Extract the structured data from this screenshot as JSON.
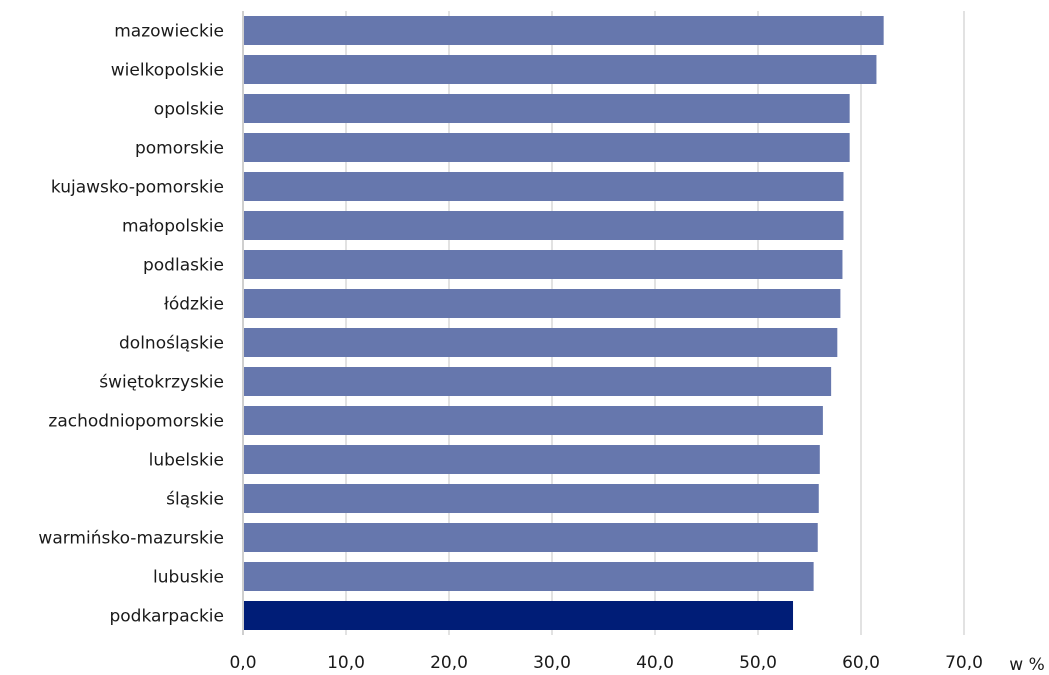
{
  "chart_data": {
    "type": "bar",
    "orientation": "horizontal",
    "categories": [
      "mazowieckie",
      "wielkopolskie",
      "opolskie",
      "pomorskie",
      "kujawsko-pomorskie",
      "małopolskie",
      "podlaskie",
      "łódzkie",
      "dolnośląskie",
      "świętokrzyskie",
      "zachodniopomorskie",
      "lubelskie",
      "śląskie",
      "warmińsko-mazurskie",
      "lubuskie",
      "podkarpackie"
    ],
    "values": [
      62.2,
      61.5,
      58.9,
      58.9,
      58.3,
      58.3,
      58.2,
      58.0,
      57.7,
      57.1,
      56.3,
      56.0,
      55.9,
      55.8,
      55.4,
      53.4
    ],
    "highlight_category": "podkarpackie",
    "xlim": [
      0,
      70
    ],
    "xticks": [
      "0,0",
      "10,0",
      "20,0",
      "30,0",
      "40,0",
      "50,0",
      "60,0",
      "70,0"
    ],
    "xunit": "w %",
    "title": "",
    "xlabel": "",
    "ylabel": "",
    "grid": true,
    "legend": "none",
    "colors": {
      "bar": "#6677ad",
      "highlight": "#001d77",
      "grid": "#d9d9d9",
      "text": "#1a1a1a"
    }
  }
}
